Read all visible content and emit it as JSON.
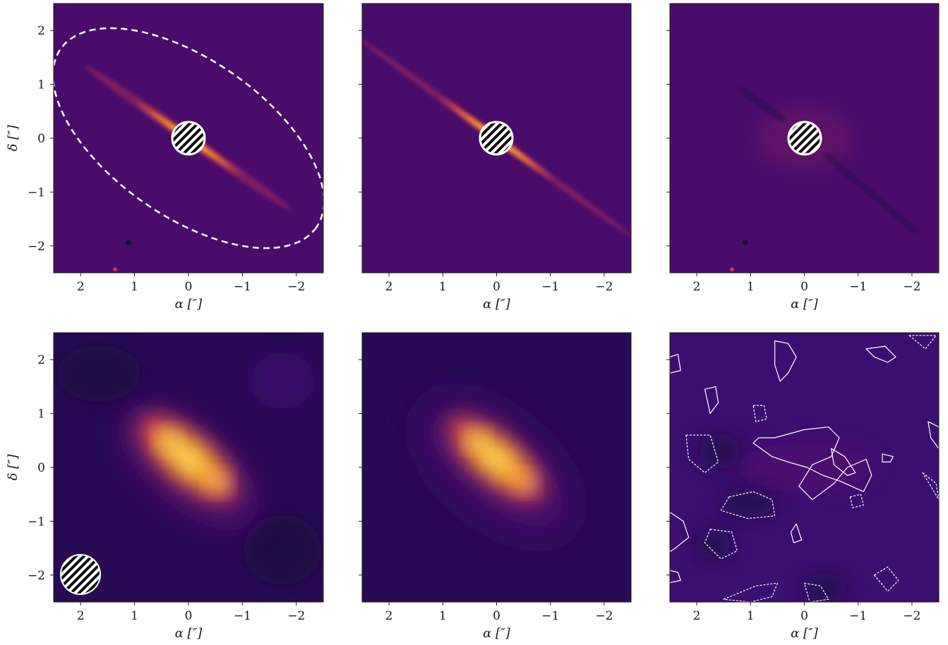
{
  "figure": {
    "colors": {
      "background_purple": "#4a0c6b",
      "disk_bright": "#fcffa4",
      "disk_orange": "#f98e09",
      "disk_red": "#bc3754",
      "dark": "#1b0c41",
      "contour": "#ffffff",
      "mask": "#ffffff"
    },
    "axis_text": {
      "alpha_label": "α [″]",
      "delta_label": "δ [″]",
      "x_ticks": [
        "2",
        "1",
        "0",
        "−1",
        "−2"
      ],
      "y_ticks": [
        "2",
        "1",
        "0",
        "−1",
        "−2"
      ]
    }
  },
  "chart_data": [
    {
      "type": "heatmap",
      "panel": "top-left",
      "content": "observed scattered-light image",
      "xlabel": "α [″]",
      "ylabel": "δ [″]",
      "xlim": [
        2.5,
        -2.5
      ],
      "ylim": [
        -2.5,
        2.5
      ],
      "xticks": [
        2,
        1,
        0,
        -1,
        -2
      ],
      "yticks": [
        2,
        1,
        0,
        -1,
        -2
      ],
      "colormap": "inferno",
      "disk_position_angle_deg": 125,
      "coronagraph_mask": {
        "center": [
          0,
          0
        ],
        "radius_arcsec": 0.3,
        "hatched": true
      },
      "annotation": {
        "shape": "dashed ellipse",
        "center": [
          0.0,
          0.0
        ],
        "semi_major_arcsec": 2.9,
        "semi_minor_arcsec": 1.45,
        "position_angle_deg": 125
      },
      "background_sources": [
        [
          1.1,
          -1.95
        ],
        [
          1.35,
          -2.42
        ]
      ]
    },
    {
      "type": "heatmap",
      "panel": "top-middle",
      "content": "model scattered-light image",
      "xlabel": "α [″]",
      "ylabel": "",
      "xlim": [
        2.5,
        -2.5
      ],
      "ylim": [
        -2.5,
        2.5
      ],
      "xticks": [
        2,
        1,
        0,
        -1,
        -2
      ],
      "yticks": [
        2,
        1,
        0,
        -1,
        -2
      ],
      "colormap": "inferno",
      "disk_position_angle_deg": 125,
      "coronagraph_mask": {
        "center": [
          0,
          0
        ],
        "radius_arcsec": 0.3,
        "hatched": true
      }
    },
    {
      "type": "heatmap",
      "panel": "top-right",
      "content": "residual scattered-light image",
      "xlabel": "α [″]",
      "ylabel": "",
      "xlim": [
        2.5,
        -2.5
      ],
      "ylim": [
        -2.5,
        2.5
      ],
      "xticks": [
        2,
        1,
        0,
        -1,
        -2
      ],
      "yticks": [
        2,
        1,
        0,
        -1,
        -2
      ],
      "colormap": "inferno",
      "coronagraph_mask": {
        "center": [
          0,
          0
        ],
        "radius_arcsec": 0.3,
        "hatched": true
      },
      "background_sources": [
        [
          1.1,
          -1.95
        ],
        [
          1.35,
          -2.42
        ]
      ]
    },
    {
      "type": "heatmap",
      "panel": "bottom-left",
      "content": "observed millimetre image",
      "xlabel": "α [″]",
      "ylabel": "δ [″]",
      "xlim": [
        2.5,
        -2.5
      ],
      "ylim": [
        -2.5,
        2.5
      ],
      "xticks": [
        2,
        1,
        0,
        -1,
        -2
      ],
      "yticks": [
        2,
        1,
        0,
        -1,
        -2
      ],
      "colormap": "inferno",
      "emission_peaks": [
        [
          0.35,
          0.5
        ],
        [
          -0.55,
          -0.3
        ]
      ],
      "beam": {
        "center": [
          2.0,
          -2.0
        ],
        "radius_arcsec": 0.37,
        "hatched": true
      }
    },
    {
      "type": "heatmap",
      "panel": "bottom-middle",
      "content": "model millimetre image",
      "xlabel": "α [″]",
      "ylabel": "",
      "xlim": [
        2.5,
        -2.5
      ],
      "ylim": [
        -2.5,
        2.5
      ],
      "xticks": [
        2,
        1,
        0,
        -1,
        -2
      ],
      "yticks": [
        2,
        1,
        0,
        -1,
        -2
      ],
      "colormap": "inferno",
      "emission_peaks": [
        [
          0.35,
          0.5
        ],
        [
          -0.55,
          -0.3
        ]
      ]
    },
    {
      "type": "heatmap",
      "panel": "bottom-right",
      "content": "residual millimetre image with contours",
      "xlabel": "α [″]",
      "ylabel": "",
      "xlim": [
        2.5,
        -2.5
      ],
      "ylim": [
        -2.5,
        2.5
      ],
      "xticks": [
        2,
        1,
        0,
        -1,
        -2
      ],
      "yticks": [
        2,
        1,
        0,
        -1,
        -2
      ],
      "colormap": "inferno",
      "contours_positive": [
        [
          [
            0.55,
            2.35
          ],
          [
            0.3,
            2.3
          ],
          [
            0.15,
            2.05
          ],
          [
            0.3,
            1.75
          ],
          [
            0.45,
            1.6
          ],
          [
            0.55,
            1.9
          ]
        ],
        [
          [
            -1.15,
            2.2
          ],
          [
            -1.5,
            2.25
          ],
          [
            -1.7,
            2.05
          ],
          [
            -1.55,
            1.95
          ],
          [
            -1.3,
            2.05
          ]
        ],
        [
          [
            1.85,
            1.45
          ],
          [
            1.65,
            1.5
          ],
          [
            1.6,
            1.2
          ],
          [
            1.75,
            1.0
          ]
        ],
        [
          [
            0.85,
            0.55
          ],
          [
            0.55,
            0.55
          ],
          [
            0.0,
            0.7
          ],
          [
            -0.45,
            0.75
          ],
          [
            -0.65,
            0.55
          ],
          [
            -0.5,
            0.2
          ],
          [
            -0.15,
            0.05
          ],
          [
            0.1,
            -0.35
          ],
          [
            -0.15,
            -0.6
          ],
          [
            -0.55,
            -0.3
          ],
          [
            -0.8,
            0.0
          ],
          [
            -1.15,
            0.15
          ],
          [
            -1.25,
            -0.15
          ],
          [
            -1.1,
            -0.45
          ],
          [
            -0.65,
            -0.25
          ],
          [
            -0.35,
            -0.15
          ],
          [
            -0.05,
            0.0
          ],
          [
            0.3,
            0.1
          ],
          [
            0.6,
            0.2
          ],
          [
            0.95,
            0.45
          ]
        ],
        [
          [
            -0.5,
            0.35
          ],
          [
            -0.75,
            0.2
          ],
          [
            -0.95,
            -0.1
          ],
          [
            -0.8,
            -0.15
          ],
          [
            -0.55,
            0.05
          ]
        ],
        [
          [
            -1.45,
            0.25
          ],
          [
            -1.65,
            0.2
          ],
          [
            -1.6,
            0.1
          ],
          [
            -1.45,
            0.1
          ]
        ],
        [
          [
            0.15,
            -1.05
          ],
          [
            0.05,
            -1.35
          ],
          [
            0.2,
            -1.4
          ],
          [
            0.25,
            -1.2
          ]
        ],
        [
          [
            2.55,
            -0.8
          ],
          [
            2.25,
            -1.0
          ],
          [
            2.15,
            -1.3
          ],
          [
            2.4,
            -1.5
          ],
          [
            2.55,
            -1.6
          ]
        ],
        [
          [
            2.55,
            -1.9
          ],
          [
            2.35,
            -1.95
          ],
          [
            2.3,
            -2.1
          ],
          [
            2.55,
            -2.15
          ]
        ]
      ],
      "contours_negative": [
        [
          [
            -1.95,
            2.45
          ],
          [
            -2.25,
            2.2
          ],
          [
            -2.45,
            2.45
          ]
        ],
        [
          [
            0.95,
            1.15
          ],
          [
            0.75,
            1.15
          ],
          [
            0.7,
            0.9
          ],
          [
            0.9,
            0.85
          ]
        ],
        [
          [
            2.2,
            0.6
          ],
          [
            1.75,
            0.6
          ],
          [
            1.6,
            0.1
          ],
          [
            1.85,
            -0.1
          ],
          [
            2.15,
            0.15
          ]
        ],
        [
          [
            1.4,
            -0.55
          ],
          [
            0.95,
            -0.45
          ],
          [
            0.6,
            -0.6
          ],
          [
            0.55,
            -0.9
          ],
          [
            1.05,
            -0.95
          ],
          [
            1.55,
            -0.8
          ]
        ],
        [
          [
            -0.85,
            -0.55
          ],
          [
            -1.05,
            -0.5
          ],
          [
            -1.1,
            -0.7
          ],
          [
            -0.9,
            -0.75
          ]
        ],
        [
          [
            1.75,
            -1.15
          ],
          [
            1.35,
            -1.2
          ],
          [
            1.25,
            -1.55
          ],
          [
            1.55,
            -1.7
          ],
          [
            1.85,
            -1.4
          ]
        ],
        [
          [
            1.5,
            -2.45
          ],
          [
            0.9,
            -2.2
          ],
          [
            0.5,
            -2.15
          ],
          [
            0.6,
            -2.4
          ],
          [
            1.0,
            -2.5
          ]
        ],
        [
          [
            0.0,
            -2.15
          ],
          [
            -0.3,
            -2.2
          ],
          [
            -0.45,
            -2.45
          ],
          [
            -0.1,
            -2.5
          ]
        ],
        [
          [
            -1.3,
            -2.0
          ],
          [
            -1.55,
            -1.85
          ],
          [
            -1.75,
            -2.1
          ],
          [
            -1.55,
            -2.3
          ]
        ],
        [
          [
            -2.2,
            -0.1
          ],
          [
            -2.45,
            -0.3
          ],
          [
            -2.5,
            -0.6
          ]
        ]
      ],
      "contours_border": [
        [
          [
            2.35,
            2.1
          ],
          [
            2.5,
            2.05
          ],
          [
            2.5,
            1.75
          ],
          [
            2.3,
            1.8
          ]
        ],
        [
          [
            -2.3,
            0.85
          ],
          [
            -2.5,
            0.75
          ],
          [
            -2.5,
            0.35
          ],
          [
            -2.35,
            0.55
          ]
        ]
      ]
    }
  ]
}
